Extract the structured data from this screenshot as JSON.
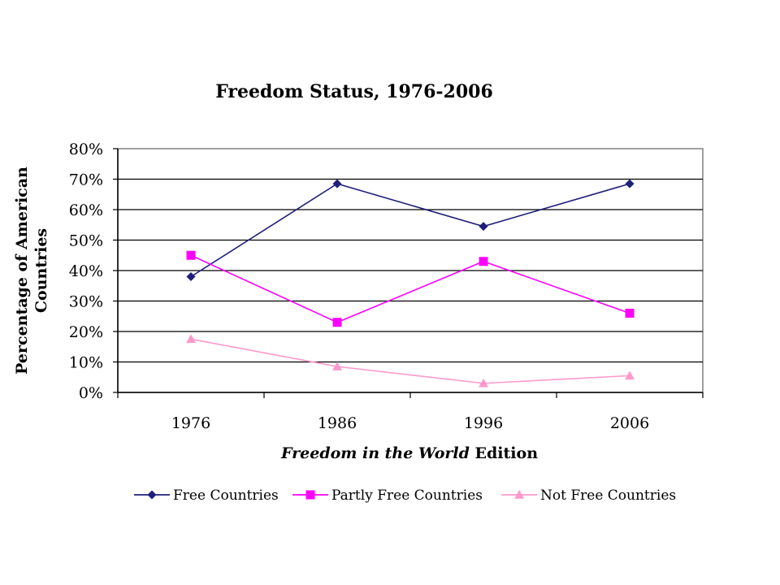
{
  "chart_data": {
    "type": "line",
    "title": "Freedom Status, 1976-2006",
    "xlabel_italic": "Freedom in the World",
    "xlabel_rest": " Edition",
    "ylabel_line1": "Percentage of American",
    "ylabel_line2": "Countries",
    "categories": [
      "1976",
      "1986",
      "1996",
      "2006"
    ],
    "y_ticks": [
      "0%",
      "10%",
      "20%",
      "30%",
      "40%",
      "50%",
      "60%",
      "70%",
      "80%"
    ],
    "ylim": [
      0,
      80
    ],
    "grid": true,
    "legend_position": "bottom",
    "series": [
      {
        "name": "Free Countries",
        "color": "#1f1f7a",
        "marker": "diamond",
        "values": [
          38,
          68.5,
          54.5,
          68.5
        ]
      },
      {
        "name": "Partly Free Countries",
        "color": "#ff00ff",
        "marker": "square",
        "values": [
          45,
          23,
          43,
          26
        ]
      },
      {
        "name": "Not Free Countries",
        "color": "#ff99cc",
        "marker": "triangle",
        "values": [
          17.5,
          8.5,
          3,
          5.5
        ]
      }
    ]
  }
}
